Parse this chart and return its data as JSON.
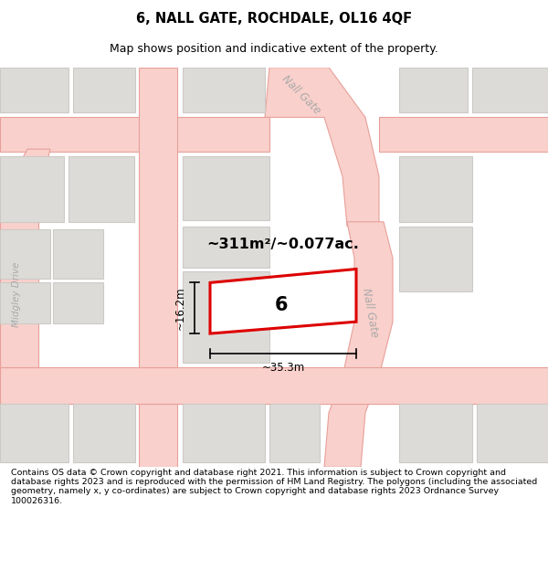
{
  "title": "6, NALL GATE, ROCHDALE, OL16 4QF",
  "subtitle": "Map shows position and indicative extent of the property.",
  "footer": "Contains OS data © Crown copyright and database right 2021. This information is subject to Crown copyright and database rights 2023 and is reproduced with the permission of HM Land Registry. The polygons (including the associated geometry, namely x, y co-ordinates) are subject to Crown copyright and database rights 2023 Ordnance Survey 100026316.",
  "bg_color": "#ffffff",
  "map_bg": "#f2f0ee",
  "road_color": "#f9d0cb",
  "road_edge": "#e8a09a",
  "building_fill": "#dddbd8",
  "building_edge": "#cccac7",
  "highlight_fill": "#ffffff",
  "highlight_edge": "#dd0000",
  "highlight_lw": 2.2,
  "label_number": "6",
  "area_text": "~311m²/~0.077ac.",
  "dim_width": "~35.3m",
  "dim_height": "~16.2m",
  "street_nall_top": "Nall Gate",
  "street_nall_right": "Nall Gate",
  "street_midgley": "Midgley Drive"
}
